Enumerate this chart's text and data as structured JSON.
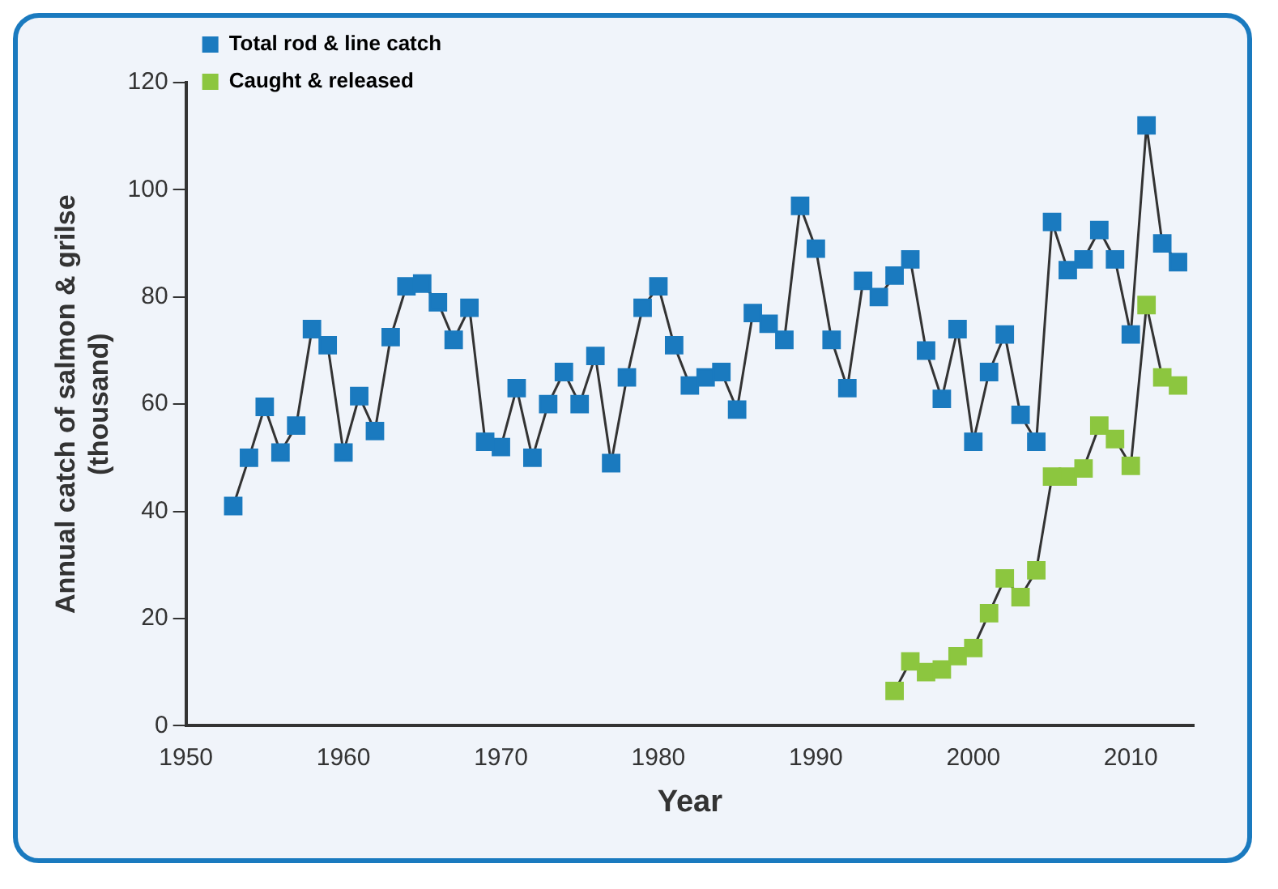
{
  "chart_data": {
    "type": "line",
    "xlabel": "Year",
    "ylabel": "Annual catch of salmon & grilse\n(thousand)",
    "xlim": [
      1950,
      2014
    ],
    "xticks": [
      1950,
      1960,
      1970,
      1980,
      1990,
      2000,
      2010
    ],
    "ylim": [
      0,
      120
    ],
    "yticks": [
      0,
      20,
      40,
      60,
      80,
      100,
      120
    ],
    "grid": false,
    "legend": "top left",
    "marker": "square",
    "line_style": "solid",
    "series": [
      {
        "name": "Total rod & line catch",
        "color": "#1a7abf",
        "x": [
          1953,
          1954,
          1955,
          1956,
          1957,
          1958,
          1959,
          1960,
          1961,
          1962,
          1963,
          1964,
          1965,
          1966,
          1967,
          1968,
          1969,
          1970,
          1971,
          1972,
          1973,
          1974,
          1975,
          1976,
          1977,
          1978,
          1979,
          1980,
          1981,
          1982,
          1983,
          1984,
          1985,
          1986,
          1987,
          1988,
          1989,
          1990,
          1991,
          1992,
          1993,
          1994,
          1995,
          1996,
          1997,
          1998,
          1999,
          2000,
          2001,
          2002,
          2003,
          2004,
          2005,
          2006,
          2007,
          2008,
          2009,
          2010,
          2011,
          2012,
          2013
        ],
        "values": [
          41,
          50,
          59.5,
          51,
          56,
          74,
          71,
          51,
          61.5,
          55,
          72.5,
          82,
          82.5,
          79,
          72,
          78,
          53,
          52,
          63,
          50,
          60,
          66,
          60,
          69,
          49,
          65,
          78,
          82,
          71,
          63.5,
          65,
          66,
          59,
          77,
          75,
          72,
          97,
          89,
          72,
          63,
          83,
          80,
          84,
          87,
          70,
          61,
          74,
          53,
          66,
          73,
          58,
          53,
          94,
          85,
          87,
          92.5,
          87,
          73,
          112,
          90,
          86.5
        ]
      },
      {
        "name": "Caught & released",
        "color": "#8cc63f",
        "x": [
          1995,
          1996,
          1997,
          1998,
          1999,
          2000,
          2001,
          2002,
          2003,
          2004,
          2005,
          2006,
          2007,
          2008,
          2009,
          2010,
          2011,
          2012,
          2013
        ],
        "values": [
          6.5,
          12,
          10,
          10.5,
          13,
          14.5,
          21,
          27.5,
          24,
          29,
          46.5,
          46.5,
          48,
          56,
          53.5,
          48.5,
          78.5,
          65,
          63.5
        ]
      }
    ]
  }
}
